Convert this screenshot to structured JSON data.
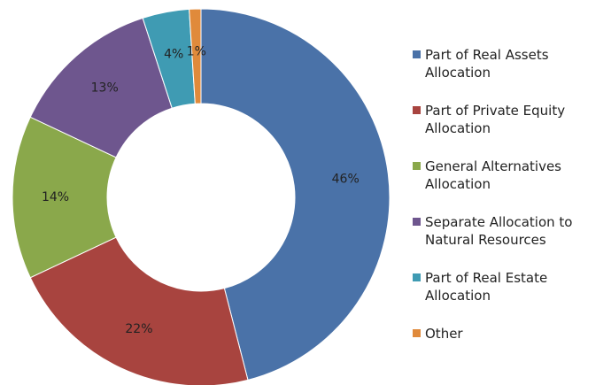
{
  "chart_data": {
    "type": "donut",
    "categories": [
      "Part of Real Assets Allocation",
      "Part of Private Equity Allocation",
      "General Alternatives Allocation",
      "Separate Allocation to Natural Resources",
      "Part of Real Estate Allocation",
      "Other"
    ],
    "values": [
      46,
      22,
      14,
      13,
      4,
      1
    ],
    "value_labels": [
      "46%",
      "22%",
      "14%",
      "13%",
      "4%",
      "1%"
    ],
    "colors": [
      "#4a72a8",
      "#a8443f",
      "#8aa84b",
      "#6e568e",
      "#3f9bb3",
      "#e08a3b"
    ],
    "legend": "right"
  }
}
